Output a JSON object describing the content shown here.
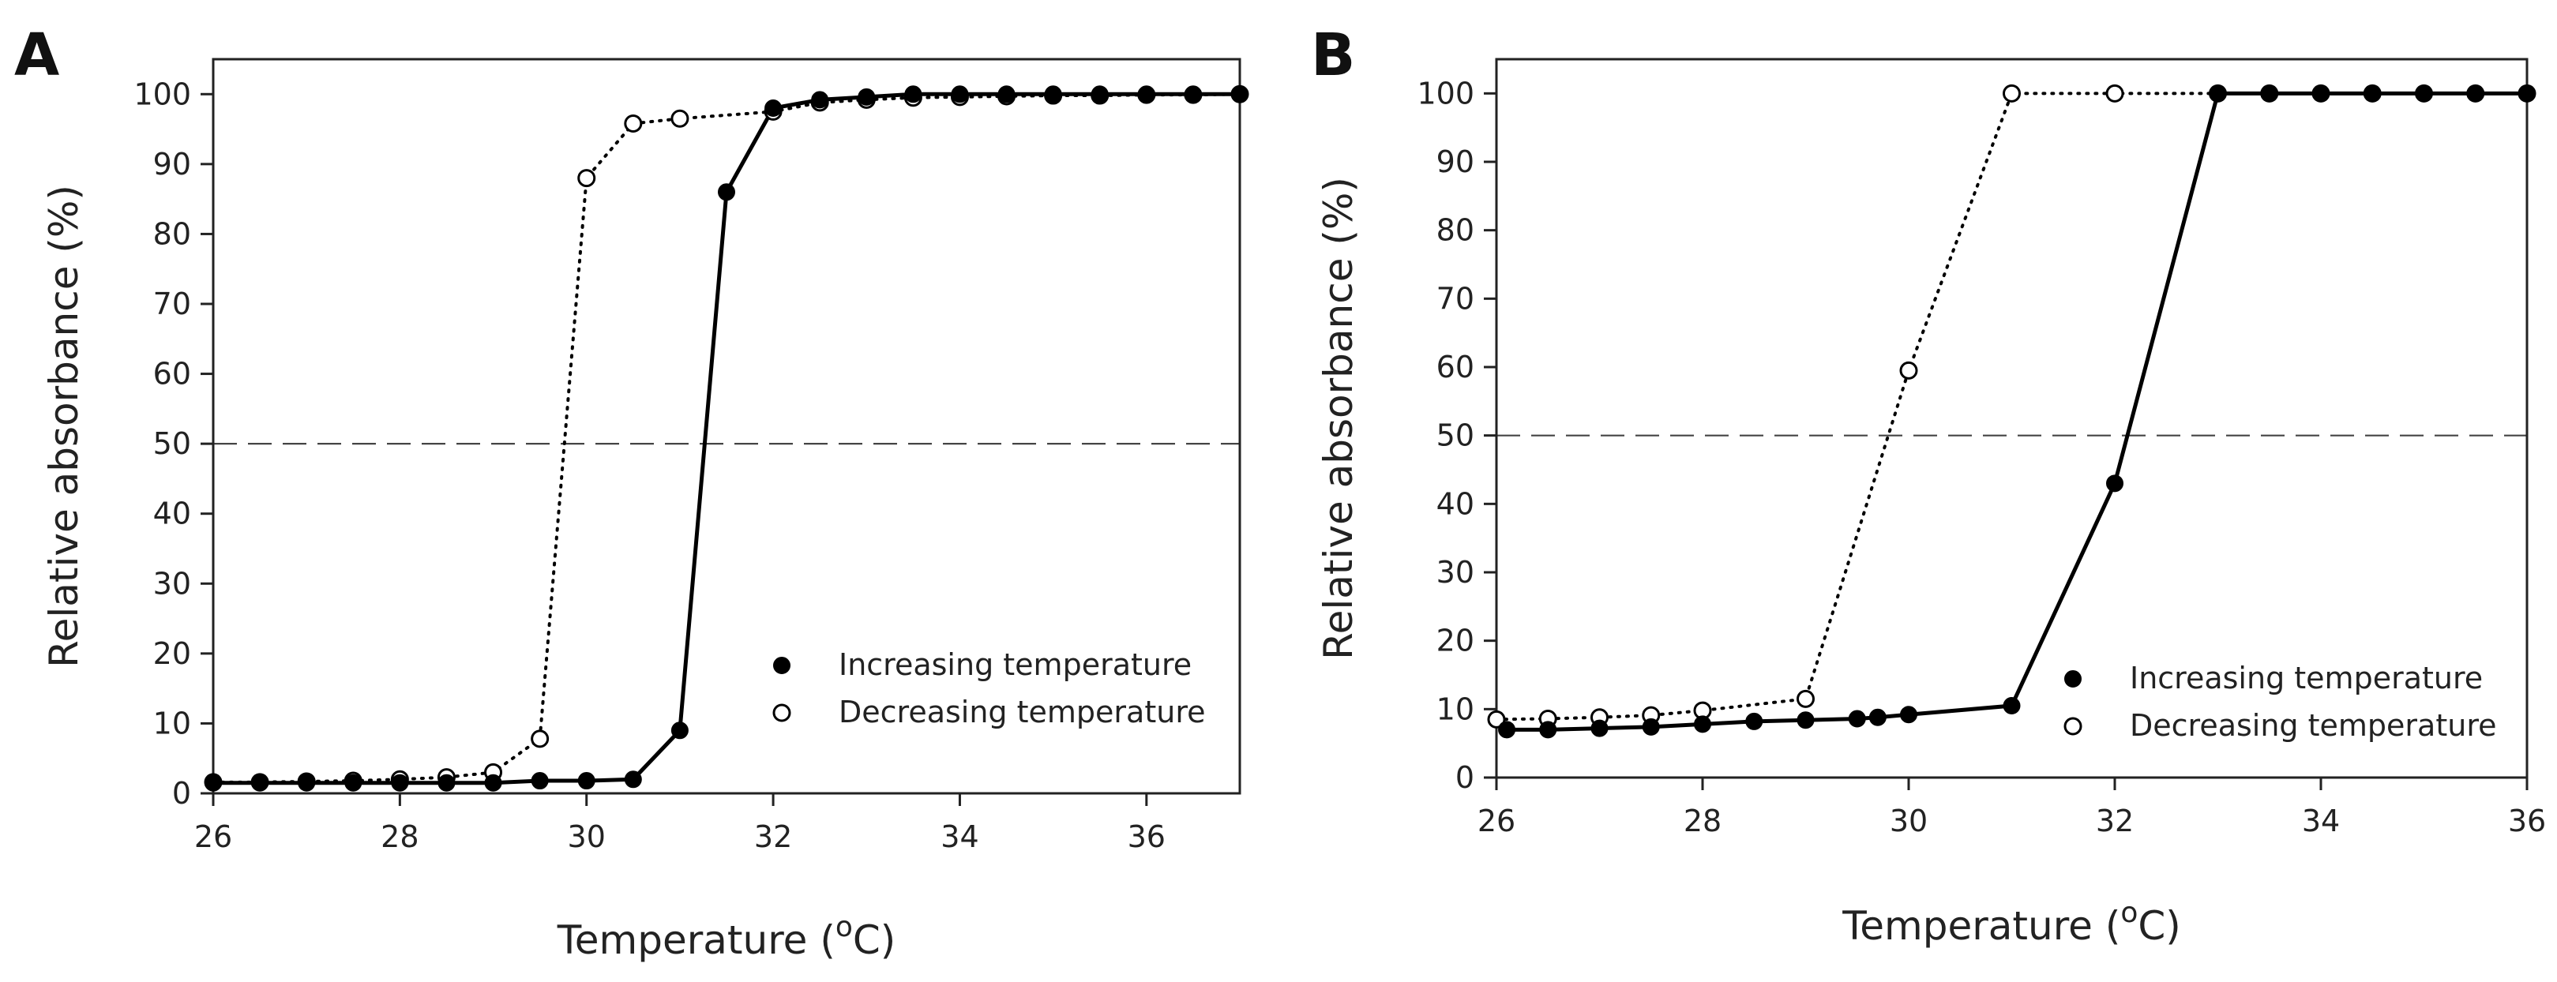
{
  "chart_data": [
    {
      "panel_label": "A",
      "type": "line",
      "xlabel": "Temperature (",
      "xlabel_sup": "o",
      "xlabel_suffix": "C)",
      "ylabel": "Relative absorbance (%)",
      "xlim": [
        26,
        37
      ],
      "ylim": [
        0,
        105
      ],
      "xticks": [
        26,
        28,
        30,
        32,
        34,
        36
      ],
      "yticks": [
        0,
        10,
        20,
        30,
        40,
        50,
        60,
        70,
        80,
        90,
        100
      ],
      "reference_line": 50,
      "legend_position": "lower-right",
      "series": [
        {
          "name": "Increasing temperature",
          "marker": "filled-circle",
          "line": "solid",
          "x": [
            26,
            26.5,
            27,
            27.5,
            28,
            28.5,
            29,
            29.5,
            30,
            30.5,
            31,
            31.5,
            32,
            32.5,
            33,
            33.5,
            34,
            34.5,
            35,
            35.5,
            36,
            36.5,
            37
          ],
          "y": [
            1.5,
            1.5,
            1.5,
            1.5,
            1.5,
            1.5,
            1.5,
            1.8,
            1.8,
            2.0,
            9.0,
            86.0,
            98.0,
            99.2,
            99.6,
            100,
            100,
            100,
            100,
            100,
            100,
            100,
            100
          ]
        },
        {
          "name": "Decreasing temperature",
          "marker": "open-circle",
          "line": "dotted",
          "x": [
            26,
            26.5,
            27,
            27.5,
            28,
            28.5,
            29,
            29.5,
            30,
            30.5,
            31,
            32,
            32.5,
            33,
            33.5,
            34,
            34.5,
            35,
            35.5,
            36,
            36.5,
            37
          ],
          "y": [
            1.6,
            1.6,
            1.7,
            1.8,
            2.0,
            2.3,
            3.0,
            7.8,
            88.0,
            95.8,
            96.5,
            97.5,
            98.8,
            99.2,
            99.5,
            99.6,
            99.7,
            99.8,
            99.8,
            99.9,
            99.9,
            100
          ]
        }
      ]
    },
    {
      "panel_label": "B",
      "type": "line",
      "xlabel": "Temperature (",
      "xlabel_sup": "o",
      "xlabel_suffix": "C)",
      "ylabel": "Relative absorbance (%)",
      "xlim": [
        26,
        36
      ],
      "ylim": [
        0,
        105
      ],
      "xticks": [
        26,
        28,
        30,
        32,
        34,
        36
      ],
      "yticks": [
        0,
        10,
        20,
        30,
        40,
        50,
        60,
        70,
        80,
        90,
        100
      ],
      "reference_line": 50,
      "legend_position": "lower-right",
      "series": [
        {
          "name": "Increasing temperature",
          "marker": "filled-circle",
          "line": "solid",
          "x": [
            26.1,
            26.5,
            27,
            27.5,
            28,
            28.5,
            29,
            29.5,
            29.7,
            30,
            31,
            32,
            33,
            33.5,
            34,
            34.5,
            35,
            35.5,
            36
          ],
          "y": [
            7.0,
            7.0,
            7.2,
            7.4,
            7.8,
            8.2,
            8.4,
            8.6,
            8.8,
            9.2,
            10.5,
            43.0,
            100,
            100,
            100,
            100,
            100,
            100,
            100
          ]
        },
        {
          "name": "Decreasing temperature",
          "marker": "open-circle",
          "line": "dotted",
          "x": [
            26,
            26.5,
            27,
            27.5,
            28,
            29,
            30,
            31,
            32,
            33,
            33.5,
            34,
            34.5,
            35,
            35.5,
            36
          ],
          "y": [
            8.5,
            8.6,
            8.8,
            9.1,
            9.8,
            11.5,
            59.5,
            100,
            100,
            100,
            100,
            100,
            100,
            100,
            100,
            100
          ]
        }
      ]
    }
  ]
}
